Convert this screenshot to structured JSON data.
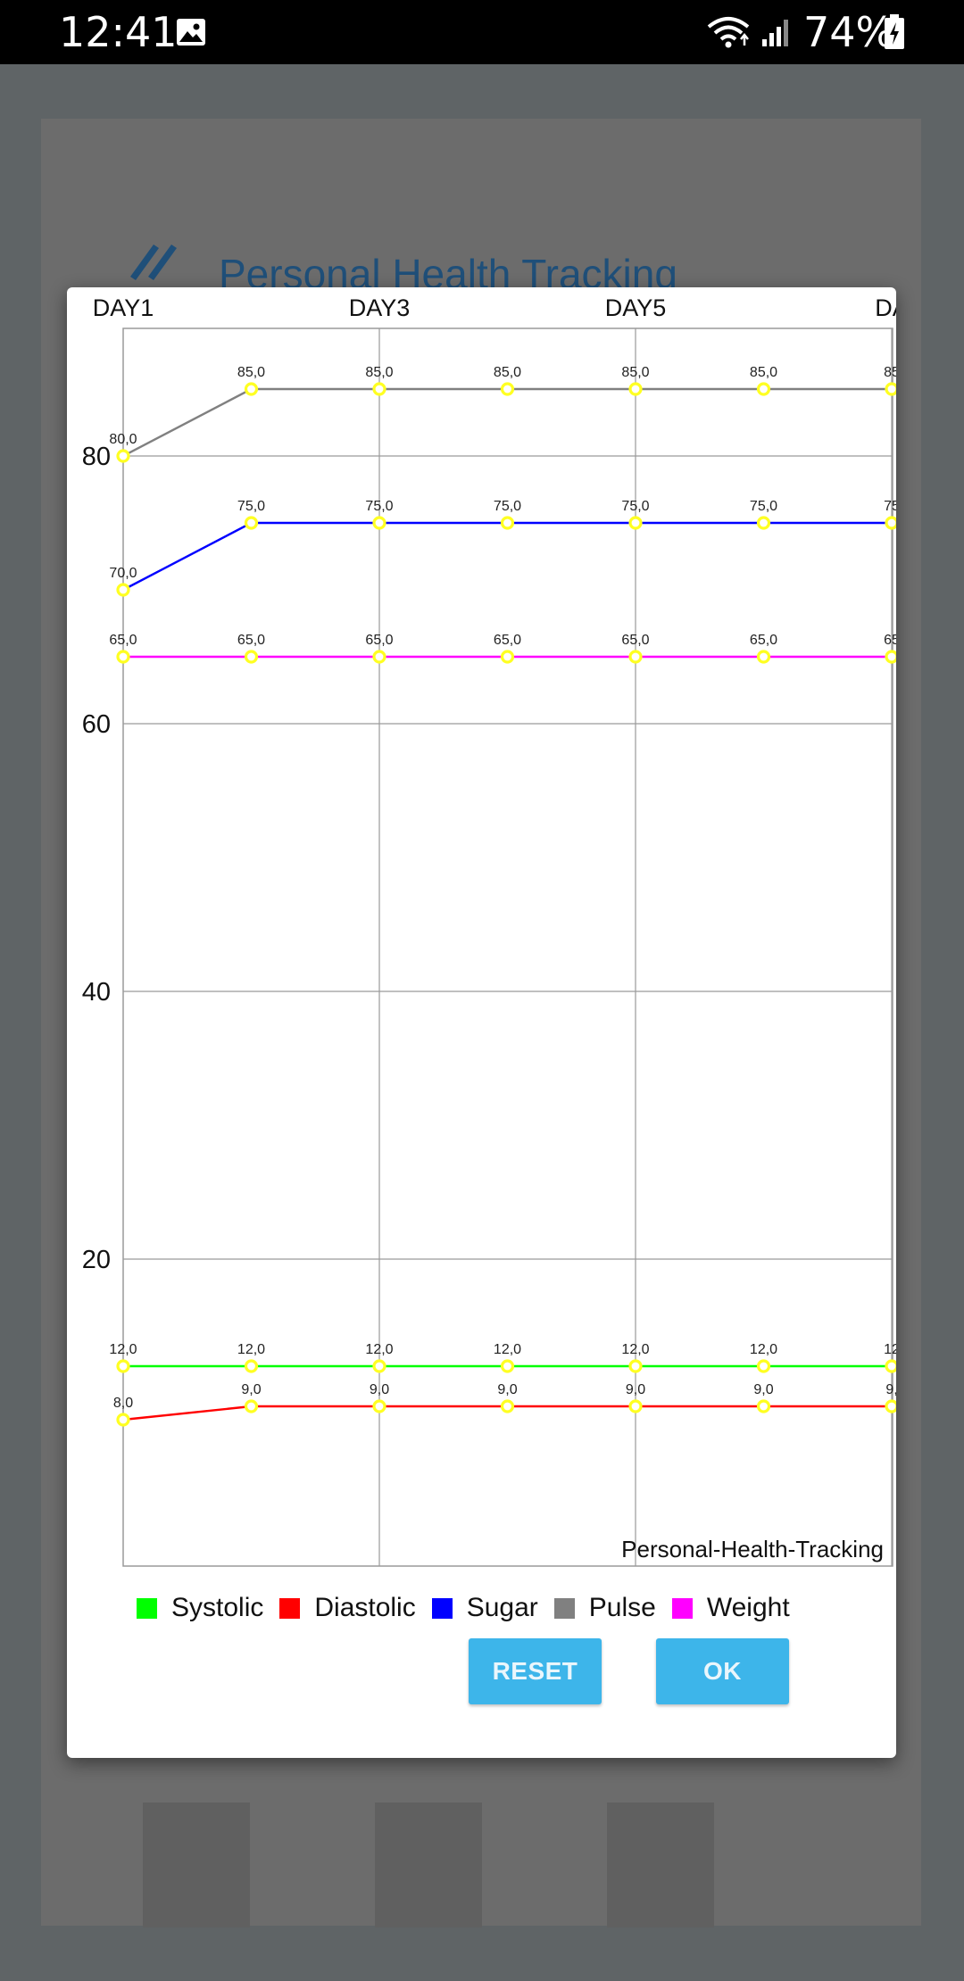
{
  "status_bar": {
    "time": "12:41",
    "battery": "74%",
    "icons": [
      "gallery-icon",
      "wifi-icon",
      "signal-icon",
      "battery-charging-icon"
    ]
  },
  "background_app": {
    "title": "Personal Health Tracking",
    "back_icon": "double-chevron-left-icon"
  },
  "chart_data": {
    "type": "line",
    "title": "",
    "description": "Personal-Health-Tracking",
    "x_tick_labels": [
      "DAY1",
      "DAY3",
      "DAY5",
      "DA"
    ],
    "y_tick_labels": [
      "20",
      "40",
      "60",
      "80"
    ],
    "ylim": [
      0,
      92
    ],
    "grid": true,
    "legend_position": "bottom",
    "series": [
      {
        "name": "Systolic",
        "color": "#00ff00",
        "labels": [
          "12,0",
          "12,0",
          "12,0",
          "12,0",
          "12,0",
          "12,0",
          "12"
        ],
        "values": [
          12,
          12,
          12,
          12,
          12,
          12,
          12
        ]
      },
      {
        "name": "Diastolic",
        "color": "#ff0000",
        "labels": [
          "8,0",
          "9,0",
          "9,0",
          "9,0",
          "9,0",
          "9,0",
          "9,"
        ],
        "values": [
          8,
          9,
          9,
          9,
          9,
          9,
          9
        ]
      },
      {
        "name": "Sugar",
        "color": "#0000ff",
        "labels": [
          "70,0",
          "75,0",
          "75,0",
          "75,0",
          "75,0",
          "75,0",
          "75"
        ],
        "values": [
          70,
          75,
          75,
          75,
          75,
          75,
          75
        ]
      },
      {
        "name": "Pulse",
        "color": "#808080",
        "labels": [
          "80,0",
          "85,0",
          "85,0",
          "85,0",
          "85,0",
          "85,0",
          "85"
        ],
        "values": [
          80,
          85,
          85,
          85,
          85,
          85,
          85
        ]
      },
      {
        "name": "Weight",
        "color": "#ff00ff",
        "labels": [
          "65,0",
          "65,0",
          "65,0",
          "65,0",
          "65,0",
          "65,0",
          "65"
        ],
        "values": [
          65,
          65,
          65,
          65,
          65,
          65,
          65
        ]
      }
    ]
  },
  "legend": {
    "items": [
      {
        "label": "Systolic",
        "color": "#00ff00"
      },
      {
        "label": "Diastolic",
        "color": "#ff0000"
      },
      {
        "label": "Sugar",
        "color": "#0000ff"
      },
      {
        "label": "Pulse",
        "color": "#808080"
      },
      {
        "label": "Weight",
        "color": "#ff00ff"
      }
    ]
  },
  "buttons": {
    "reset": "RESET",
    "ok": "OK"
  }
}
